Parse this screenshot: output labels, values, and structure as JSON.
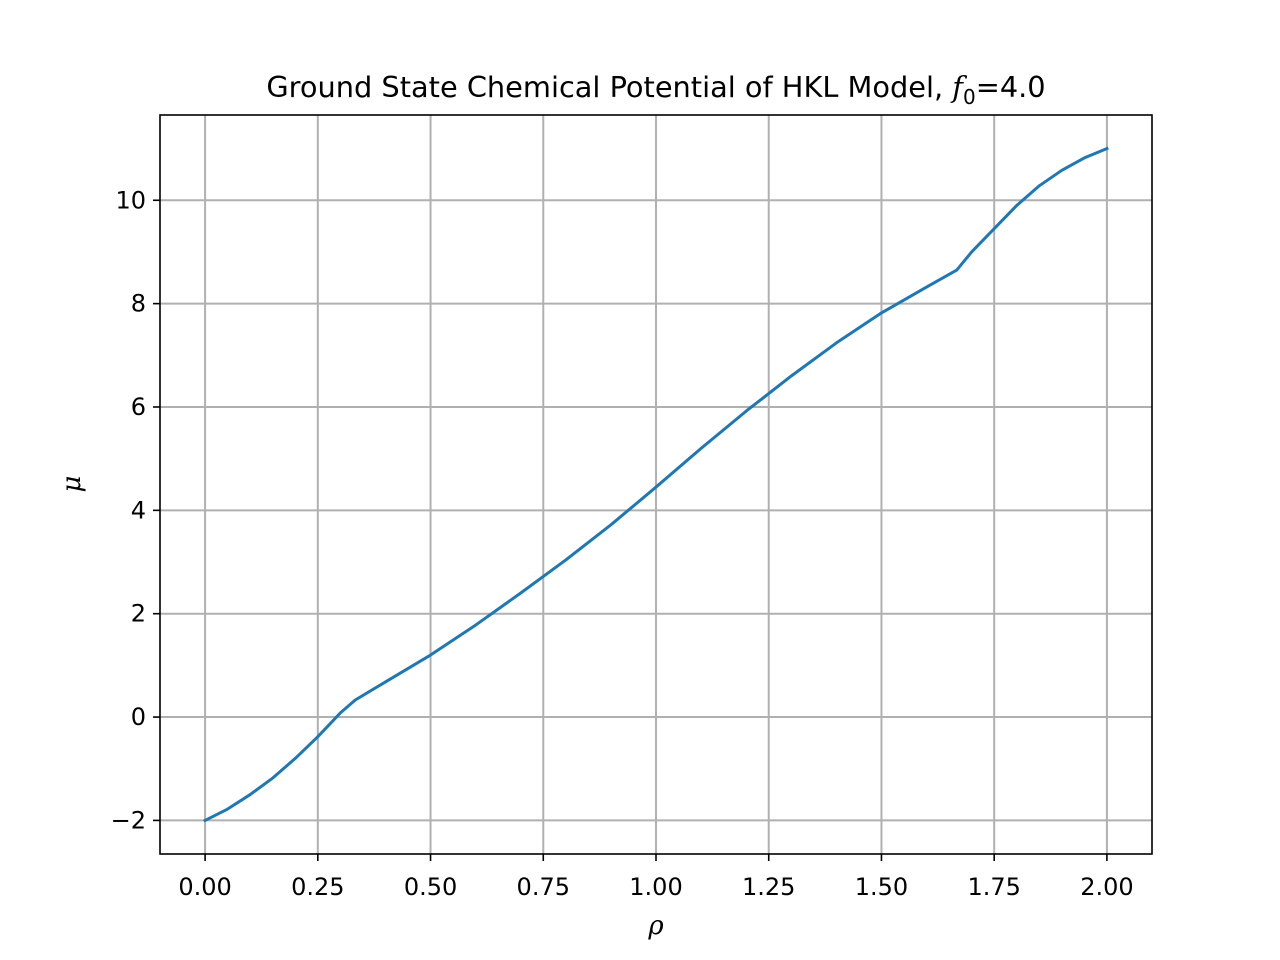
{
  "chart_data": {
    "type": "line",
    "title_main": "Ground State Chemical Potential of HKL Model, ",
    "title_var": "f",
    "title_sub": "0",
    "title_eq": "=4.0",
    "xlabel": "ρ",
    "ylabel": "μ",
    "xlim": [
      -0.1,
      2.1
    ],
    "ylim": [
      -2.65,
      11.65
    ],
    "grid": true,
    "x_ticks": [
      0.0,
      0.25,
      0.5,
      0.75,
      1.0,
      1.25,
      1.5,
      1.75,
      2.0
    ],
    "x_tick_labels": [
      "0.00",
      "0.25",
      "0.50",
      "0.75",
      "1.00",
      "1.25",
      "1.50",
      "1.75",
      "2.00"
    ],
    "y_ticks": [
      -2,
      0,
      2,
      4,
      6,
      8,
      10
    ],
    "y_tick_labels": [
      "−2",
      "0",
      "2",
      "4",
      "6",
      "8",
      "10"
    ],
    "series": [
      {
        "color": "#1f77b4",
        "x": [
          0.0,
          0.05,
          0.1,
          0.15,
          0.2,
          0.25,
          0.3,
          0.333,
          0.4,
          0.5,
          0.6,
          0.7,
          0.8,
          0.9,
          1.0,
          1.1,
          1.2,
          1.3,
          1.4,
          1.5,
          1.6,
          1.667,
          1.7,
          1.75,
          1.8,
          1.85,
          1.9,
          1.95,
          2.0
        ],
        "y": [
          -2.0,
          -1.78,
          -1.5,
          -1.18,
          -0.8,
          -0.38,
          0.08,
          0.33,
          0.68,
          1.2,
          1.78,
          2.4,
          3.04,
          3.72,
          4.45,
          5.2,
          5.92,
          6.6,
          7.24,
          7.82,
          8.32,
          8.65,
          9.0,
          9.45,
          9.9,
          10.28,
          10.58,
          10.82,
          11.0
        ]
      }
    ]
  }
}
